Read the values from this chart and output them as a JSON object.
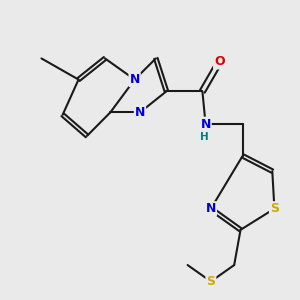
{
  "bg_color": "#eaeaea",
  "bond_color": "#1a1a1a",
  "bond_lw": 1.5,
  "dbo": 0.06,
  "colors": {
    "N": "#0000dd",
    "O": "#dd0000",
    "S": "#ccaa00",
    "H": "#008080",
    "C": "#1a1a1a"
  },
  "figsize": [
    3.0,
    3.0
  ],
  "dpi": 100,
  "xlim": [
    0,
    10
  ],
  "ylim": [
    0,
    10
  ]
}
